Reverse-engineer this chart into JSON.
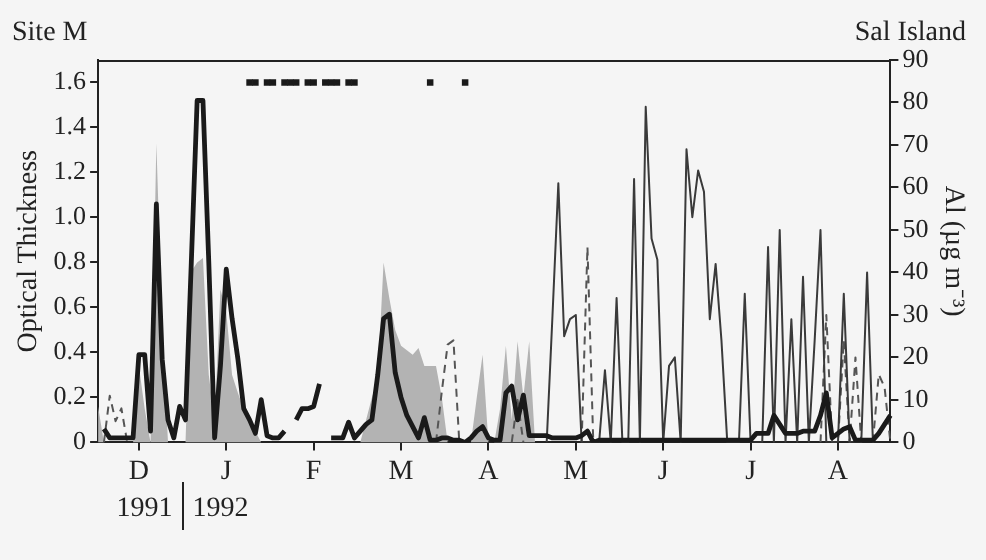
{
  "chart_data": {
    "type": "line",
    "ylabel": "Optical Thickness",
    "y2label": "Al (µg m⁻³)",
    "annotations": [
      "Site M",
      "Sal Island",
      "1991",
      "1992"
    ],
    "categories": [
      null,
      null,
      null,
      null,
      null,
      null,
      null,
      "D",
      null,
      null,
      null,
      null,
      null,
      null,
      null,
      null,
      null,
      null,
      null,
      null,
      null,
      null,
      "J",
      null,
      null,
      null,
      null,
      null,
      null,
      null,
      null,
      null,
      null,
      null,
      null,
      null,
      null,
      "F",
      null,
      null,
      null,
      null,
      null,
      null,
      null,
      null,
      null,
      null,
      null,
      null,
      null,
      null,
      "M",
      null,
      null,
      null,
      null,
      null,
      null,
      null,
      null,
      null,
      null,
      null,
      null,
      null,
      null,
      "A",
      null,
      null,
      null,
      null,
      null,
      null,
      null,
      null,
      null,
      null,
      null,
      null,
      null,
      null,
      "M",
      null,
      null,
      null,
      null,
      null,
      null,
      null,
      null,
      null,
      null,
      null,
      null,
      null,
      null,
      "J",
      null,
      null,
      null,
      null,
      null,
      null,
      null,
      null,
      null,
      null,
      null,
      null,
      null,
      null,
      "J",
      null,
      null,
      null,
      null,
      null,
      null,
      null,
      null,
      null,
      null,
      null,
      null,
      null,
      null,
      "A",
      null,
      null,
      null,
      null,
      null,
      null,
      null,
      null,
      null
    ],
    "ylim": [
      0,
      1.7
    ],
    "yticks": [
      0,
      0.2,
      0.4,
      0.6,
      0.8,
      {
        "value": 1,
        "label": "1.0"
      },
      1.2,
      1.4,
      1.6
    ],
    "y2lim": [
      0,
      90
    ],
    "y2ticks": [
      0,
      10,
      20,
      30,
      40,
      50,
      60,
      70,
      80,
      90
    ],
    "grid": false,
    "legend": false,
    "series": [
      {
        "type": "area",
        "color": "#b3b3b3",
        "values": [
          0.16,
          0,
          0,
          0,
          0,
          0,
          0,
          0.34,
          0.15,
          0,
          1.33,
          0.52,
          0,
          0,
          0,
          0,
          0.76,
          0.8,
          0.82,
          0.3,
          0.1,
          0.68,
          0.58,
          0.3,
          0.22,
          0.15,
          0.1,
          0.05,
          0,
          0,
          0,
          0,
          0,
          0,
          0,
          0,
          0,
          0,
          0,
          0,
          0,
          0,
          0,
          0,
          0,
          0,
          0.1,
          0.2,
          0.28,
          0.8,
          0.64,
          0.5,
          0.43,
          0.41,
          0.39,
          0.42,
          0.34,
          0.34,
          0.34,
          0.2,
          0,
          0,
          0,
          0,
          0,
          0.2,
          0.39,
          0,
          0,
          0.15,
          0.43,
          0.1,
          0.45,
          0.2,
          0.45,
          0,
          null,
          null,
          null,
          null,
          null,
          null,
          null,
          null,
          null,
          null,
          null,
          null,
          null,
          null,
          null,
          null,
          null,
          null,
          null,
          null,
          null,
          null,
          null,
          null,
          null,
          null,
          null,
          null,
          null,
          null,
          null,
          null,
          null,
          null,
          null,
          null,
          null,
          null,
          null,
          null,
          null,
          null,
          null,
          null,
          null,
          null,
          null,
          null,
          null,
          null,
          null,
          null,
          null,
          null,
          null,
          null,
          null,
          null,
          null,
          null,
          null
        ]
      },
      {
        "type": "line",
        "color": "#1a1a1a",
        "values": [
          null,
          0.06,
          0.02,
          0.02,
          0.02,
          0.02,
          0.02,
          0.39,
          0.39,
          0.05,
          1.06,
          0.37,
          0.1,
          0.02,
          0.16,
          0.1,
          0.8,
          1.52,
          1.52,
          0.8,
          0.02,
          0.34,
          0.77,
          0.55,
          0.37,
          0.15,
          0.1,
          0.04,
          0.19,
          0.03,
          0.02,
          0.02,
          0.05,
          null,
          0.1,
          0.15,
          0.15,
          0.16,
          0.26,
          null,
          0.02,
          0.02,
          0.02,
          0.09,
          0.02,
          0.05,
          0.08,
          0.1,
          0.3,
          0.55,
          0.57,
          0.31,
          0.2,
          0.12,
          0.07,
          0.02,
          0.11,
          0.01,
          0.01,
          0.02,
          0.02,
          0.01,
          0.01,
          0,
          0.02,
          0.05,
          0.07,
          0.02,
          0.01,
          0.01,
          0.22,
          0.25,
          0.1,
          0.21,
          0.03,
          0.03,
          0.03,
          0.03,
          0.02,
          0.02,
          0.02,
          0.02,
          0.02,
          0.03,
          0.05,
          0,
          0.01,
          0.01,
          0.01,
          0.01,
          0.01,
          0.01,
          0.01,
          0.01,
          0.01,
          0.01,
          0.01,
          0.01,
          0.01,
          0.01,
          0.01,
          0.01,
          0.01,
          0.01,
          0.01,
          0.01,
          0.01,
          0.01,
          0.01,
          0.01,
          0.01,
          0.01,
          0.01,
          0.04,
          0.04,
          0.04,
          0.12,
          0.08,
          0.04,
          0.04,
          0.04,
          0.05,
          0.05,
          0.05,
          0.12,
          0.22,
          0.02,
          0.04,
          0.06,
          0.07,
          0.01,
          0.01,
          0.01,
          0.01,
          0.04,
          0.08,
          0.12
        ]
      },
      {
        "type": "line",
        "axis": "y2",
        "color": "#3a3a3a",
        "values": [
          null,
          null,
          null,
          null,
          null,
          null,
          null,
          null,
          null,
          null,
          null,
          null,
          null,
          null,
          null,
          null,
          null,
          null,
          null,
          null,
          null,
          null,
          null,
          null,
          null,
          null,
          null,
          null,
          null,
          null,
          null,
          null,
          null,
          null,
          null,
          null,
          null,
          null,
          null,
          null,
          null,
          null,
          null,
          null,
          null,
          null,
          null,
          null,
          null,
          null,
          null,
          null,
          null,
          null,
          null,
          null,
          null,
          null,
          null,
          null,
          null,
          null,
          null,
          null,
          null,
          null,
          null,
          null,
          null,
          null,
          null,
          null,
          null,
          null,
          null,
          null,
          null,
          0,
          30,
          61,
          25,
          29,
          30,
          0,
          0,
          0,
          0,
          17,
          0,
          34,
          0,
          0,
          62,
          0,
          79,
          48,
          43,
          0,
          18,
          20,
          0,
          69,
          53,
          64,
          59,
          29,
          42,
          24,
          0,
          0,
          0,
          35,
          0,
          0,
          0,
          46,
          0,
          50,
          0,
          29,
          0,
          39,
          0,
          24,
          50,
          0,
          0,
          0,
          35,
          0,
          0,
          0,
          40,
          0,
          null,
          null,
          null
        ]
      },
      {
        "type": "line",
        "axis": "y2",
        "line_style": "dashed",
        "color": "#555555",
        "values": [
          null,
          0,
          11,
          5,
          8,
          0,
          null,
          null,
          null,
          null,
          null,
          null,
          null,
          null,
          null,
          null,
          null,
          null,
          null,
          null,
          null,
          null,
          null,
          null,
          null,
          null,
          null,
          null,
          null,
          null,
          null,
          null,
          null,
          null,
          null,
          null,
          null,
          null,
          null,
          null,
          null,
          null,
          null,
          null,
          null,
          null,
          null,
          null,
          null,
          null,
          null,
          null,
          null,
          null,
          null,
          null,
          null,
          null,
          0,
          12,
          23,
          24,
          0,
          null,
          null,
          null,
          null,
          null,
          null,
          null,
          null,
          0,
          10,
          0,
          null,
          null,
          null,
          null,
          null,
          null,
          null,
          null,
          null,
          0,
          46,
          0,
          null,
          null,
          null,
          null,
          null,
          null,
          null,
          null,
          null,
          null,
          null,
          null,
          null,
          null,
          null,
          null,
          null,
          null,
          null,
          null,
          null,
          null,
          null,
          null,
          null,
          null,
          null,
          null,
          null,
          null,
          null,
          null,
          null,
          null,
          null,
          null,
          null,
          null,
          0,
          30,
          0,
          0,
          24,
          0,
          20,
          0,
          null,
          0,
          16,
          13,
          0
        ]
      },
      {
        "type": "scatter",
        "marker": "square",
        "color": "#1a1a1a",
        "values": [
          null,
          null,
          null,
          null,
          null,
          null,
          null,
          null,
          null,
          null,
          null,
          null,
          null,
          null,
          null,
          null,
          null,
          null,
          null,
          null,
          null,
          null,
          null,
          null,
          null,
          null,
          1.6,
          1.6,
          null,
          1.6,
          1.6,
          null,
          1.6,
          1.6,
          1.6,
          null,
          1.6,
          1.6,
          null,
          1.6,
          1.6,
          1.6,
          null,
          1.6,
          1.6,
          null,
          null,
          null,
          null,
          null,
          null,
          null,
          null,
          null,
          null,
          null,
          null,
          1.6,
          null,
          null,
          null,
          null,
          null,
          1.6,
          null,
          null,
          null,
          null,
          null,
          null,
          null,
          null,
          null,
          null,
          null,
          null,
          null,
          null,
          null,
          null,
          null,
          null,
          null,
          null,
          null,
          null,
          null,
          null,
          null,
          null,
          null,
          null,
          null,
          null,
          null,
          null,
          null,
          null,
          null,
          null,
          null,
          null,
          null,
          null,
          null,
          null,
          null,
          null,
          null,
          null,
          null,
          null,
          null,
          null,
          null,
          null,
          null,
          null,
          null,
          null,
          null,
          null,
          null,
          null,
          null,
          null,
          null,
          null,
          null,
          null,
          null,
          null,
          null,
          null,
          null,
          null,
          null
        ]
      }
    ]
  }
}
